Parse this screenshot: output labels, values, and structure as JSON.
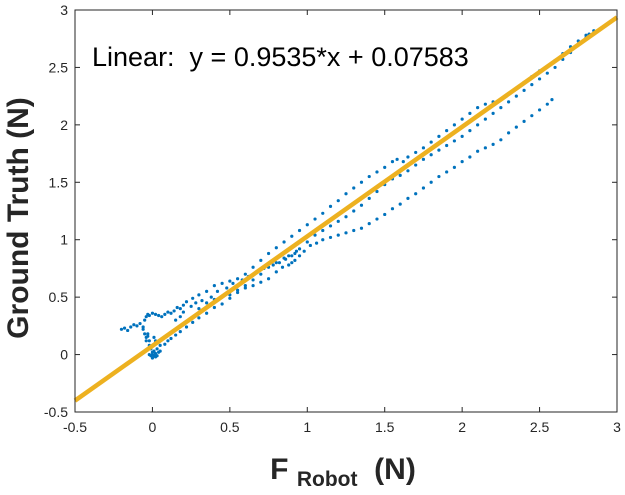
{
  "chart_data": {
    "type": "scatter",
    "title": "",
    "xlabel_main": "F",
    "xlabel_sub": "Robot",
    "xlabel_unit": " (N)",
    "ylabel": "Ground Truth (N)",
    "xlim": [
      -0.5,
      3
    ],
    "ylim": [
      -0.5,
      3
    ],
    "x_ticks": [
      -0.5,
      0,
      0.5,
      1,
      1.5,
      2,
      2.5,
      3
    ],
    "y_ticks": [
      -0.5,
      0,
      0.5,
      1,
      1.5,
      2,
      2.5,
      3
    ],
    "x_tick_labels": [
      "-0.5",
      "0",
      "0.5",
      "1",
      "1.5",
      "2",
      "2.5",
      "3"
    ],
    "y_tick_labels": [
      "-0.5",
      "0",
      "0.5",
      "1",
      "1.5",
      "2",
      "2.5",
      "3"
    ],
    "grid": false,
    "annotation": "Linear:  y = 0.9535*x + 0.07583",
    "fit": {
      "slope": 0.9535,
      "intercept": 0.07583,
      "x_range": [
        -0.5,
        3
      ]
    },
    "colors": {
      "points": "#0072BD",
      "fit_line": "#EDB120",
      "axes": "#262626"
    },
    "series": [
      {
        "points": [
          [
            -0.2,
            0.22
          ],
          [
            -0.18,
            0.23
          ],
          [
            -0.16,
            0.21
          ],
          [
            -0.14,
            0.24
          ],
          [
            -0.12,
            0.26
          ],
          [
            -0.1,
            0.25
          ],
          [
            -0.08,
            0.27
          ],
          [
            -0.06,
            0.24
          ],
          [
            -0.05,
            0.3
          ],
          [
            -0.04,
            0.33
          ],
          [
            -0.03,
            0.35
          ],
          [
            -0.02,
            0.34
          ],
          [
            0.0,
            0.36
          ],
          [
            0.02,
            0.35
          ],
          [
            0.04,
            0.34
          ],
          [
            0.06,
            0.33
          ],
          [
            0.08,
            0.35
          ],
          [
            0.1,
            0.37
          ],
          [
            0.12,
            0.36
          ],
          [
            0.14,
            0.38
          ],
          [
            0.16,
            0.41
          ],
          [
            0.18,
            0.4
          ],
          [
            0.2,
            0.43
          ],
          [
            -0.03,
            0.18
          ],
          [
            -0.02,
            0.12
          ],
          [
            -0.02,
            0.08
          ],
          [
            -0.01,
            0.05
          ],
          [
            0.0,
            0.02
          ],
          [
            0.0,
            0.0
          ],
          [
            0.01,
            -0.01
          ],
          [
            0.02,
            -0.02
          ],
          [
            0.03,
            -0.01
          ],
          [
            -0.01,
            -0.01
          ],
          [
            0.0,
            -0.03
          ],
          [
            0.02,
            0.01
          ],
          [
            0.04,
            0.02
          ],
          [
            0.05,
            0.03
          ],
          [
            0.03,
            0.05
          ],
          [
            0.01,
            0.03
          ],
          [
            -0.02,
            0.0
          ],
          [
            -0.06,
            0.22
          ],
          [
            -0.05,
            0.18
          ],
          [
            -0.04,
            0.15
          ],
          [
            -0.03,
            0.16
          ],
          [
            -0.04,
            0.12
          ],
          [
            0.01,
            0.15
          ],
          [
            0.02,
            0.12
          ],
          [
            0.05,
            0.08
          ],
          [
            0.08,
            0.09
          ],
          [
            0.1,
            0.12
          ],
          [
            0.12,
            0.14
          ],
          [
            0.15,
            0.17
          ],
          [
            0.18,
            0.2
          ],
          [
            0.22,
            0.24
          ],
          [
            0.26,
            0.28
          ],
          [
            0.3,
            0.32
          ],
          [
            0.35,
            0.36
          ],
          [
            0.4,
            0.41
          ],
          [
            0.45,
            0.44
          ],
          [
            0.5,
            0.49
          ],
          [
            0.55,
            0.54
          ],
          [
            0.6,
            0.58
          ],
          [
            0.65,
            0.6
          ],
          [
            0.7,
            0.63
          ],
          [
            0.75,
            0.66
          ],
          [
            0.8,
            0.72
          ],
          [
            0.84,
            0.76
          ],
          [
            0.88,
            0.78
          ],
          [
            0.9,
            0.8
          ],
          [
            0.92,
            0.82
          ],
          [
            0.95,
            0.86
          ],
          [
            0.98,
            0.9
          ],
          [
            1.02,
            0.95
          ],
          [
            1.06,
            0.97
          ],
          [
            1.1,
            1.0
          ],
          [
            1.15,
            1.02
          ],
          [
            1.2,
            1.04
          ],
          [
            1.25,
            1.06
          ],
          [
            1.3,
            1.08
          ],
          [
            1.35,
            1.1
          ],
          [
            1.4,
            1.14
          ],
          [
            1.45,
            1.18
          ],
          [
            1.5,
            1.22
          ],
          [
            1.55,
            1.27
          ],
          [
            1.6,
            1.31
          ],
          [
            1.65,
            1.36
          ],
          [
            1.7,
            1.4
          ],
          [
            1.75,
            1.45
          ],
          [
            1.8,
            1.5
          ],
          [
            1.85,
            1.55
          ],
          [
            1.9,
            1.59
          ],
          [
            1.95,
            1.63
          ],
          [
            2.0,
            1.68
          ],
          [
            2.05,
            1.72
          ],
          [
            2.1,
            1.77
          ],
          [
            2.15,
            1.8
          ],
          [
            2.2,
            1.83
          ],
          [
            2.25,
            1.87
          ],
          [
            2.3,
            1.93
          ],
          [
            2.35,
            1.98
          ],
          [
            2.4,
            2.03
          ],
          [
            2.45,
            2.08
          ],
          [
            2.5,
            2.13
          ],
          [
            2.55,
            2.18
          ],
          [
            2.58,
            2.22
          ],
          [
            0.22,
            0.46
          ],
          [
            0.26,
            0.49
          ],
          [
            0.3,
            0.52
          ],
          [
            0.35,
            0.55
          ],
          [
            0.4,
            0.6
          ],
          [
            0.45,
            0.62
          ],
          [
            0.5,
            0.64
          ],
          [
            0.55,
            0.66
          ],
          [
            0.6,
            0.7
          ],
          [
            0.65,
            0.76
          ],
          [
            0.7,
            0.82
          ],
          [
            0.75,
            0.88
          ],
          [
            0.8,
            0.93
          ],
          [
            0.85,
            0.98
          ],
          [
            0.9,
            1.03
          ],
          [
            0.95,
            1.08
          ],
          [
            1.0,
            1.13
          ],
          [
            1.05,
            1.18
          ],
          [
            1.1,
            1.23
          ],
          [
            1.15,
            1.29
          ],
          [
            1.2,
            1.34
          ],
          [
            1.25,
            1.4
          ],
          [
            1.3,
            1.45
          ],
          [
            1.35,
            1.5
          ],
          [
            1.4,
            1.55
          ],
          [
            1.45,
            1.59
          ],
          [
            1.5,
            1.63
          ],
          [
            1.55,
            1.68
          ],
          [
            1.58,
            1.7
          ],
          [
            1.62,
            1.68
          ],
          [
            1.65,
            1.72
          ],
          [
            1.7,
            1.76
          ],
          [
            1.75,
            1.8
          ],
          [
            1.8,
            1.85
          ],
          [
            1.85,
            1.9
          ],
          [
            1.9,
            1.95
          ],
          [
            1.95,
            2.0
          ],
          [
            2.0,
            2.05
          ],
          [
            2.05,
            2.1
          ],
          [
            2.1,
            2.15
          ],
          [
            2.15,
            2.18
          ],
          [
            2.2,
            2.2
          ],
          [
            2.25,
            2.22
          ],
          [
            2.3,
            2.27
          ],
          [
            2.35,
            2.32
          ],
          [
            2.4,
            2.37
          ],
          [
            2.45,
            2.42
          ],
          [
            2.5,
            2.47
          ],
          [
            2.55,
            2.51
          ],
          [
            2.6,
            2.56
          ],
          [
            2.65,
            2.62
          ],
          [
            2.7,
            2.68
          ],
          [
            2.75,
            2.73
          ],
          [
            2.8,
            2.78
          ],
          [
            2.85,
            2.82
          ],
          [
            0.3,
            0.4
          ],
          [
            0.35,
            0.45
          ],
          [
            0.4,
            0.48
          ],
          [
            0.45,
            0.5
          ],
          [
            0.5,
            0.52
          ],
          [
            0.55,
            0.56
          ],
          [
            0.6,
            0.6
          ],
          [
            0.65,
            0.65
          ],
          [
            0.7,
            0.7
          ],
          [
            0.75,
            0.76
          ],
          [
            0.8,
            0.8
          ],
          [
            0.85,
            0.84
          ],
          [
            0.88,
            0.86
          ],
          [
            0.92,
            0.88
          ],
          [
            0.95,
            0.92
          ],
          [
            1.0,
            0.98
          ],
          [
            1.05,
            1.04
          ],
          [
            1.1,
            1.08
          ],
          [
            1.15,
            1.12
          ],
          [
            1.2,
            1.16
          ],
          [
            1.25,
            1.2
          ],
          [
            1.3,
            1.25
          ],
          [
            1.35,
            1.3
          ],
          [
            1.4,
            1.36
          ],
          [
            1.45,
            1.42
          ],
          [
            1.5,
            1.48
          ],
          [
            1.55,
            1.53
          ],
          [
            1.6,
            1.56
          ],
          [
            1.65,
            1.6
          ],
          [
            1.7,
            1.65
          ],
          [
            1.75,
            1.7
          ],
          [
            1.8,
            1.74
          ],
          [
            1.85,
            1.78
          ],
          [
            1.9,
            1.82
          ],
          [
            1.95,
            1.86
          ],
          [
            2.0,
            1.9
          ],
          [
            2.05,
            1.95
          ],
          [
            2.1,
            2.0
          ],
          [
            2.15,
            2.05
          ],
          [
            2.2,
            2.1
          ],
          [
            2.25,
            2.15
          ],
          [
            2.3,
            2.2
          ],
          [
            2.35,
            2.25
          ],
          [
            2.4,
            2.3
          ],
          [
            2.45,
            2.35
          ],
          [
            2.5,
            2.4
          ],
          [
            2.55,
            2.45
          ],
          [
            2.6,
            2.5
          ],
          [
            2.65,
            2.57
          ],
          [
            2.7,
            2.63
          ],
          [
            2.75,
            2.7
          ],
          [
            2.8,
            2.76
          ],
          [
            2.82,
            2.79
          ],
          [
            0.15,
            0.3
          ],
          [
            0.18,
            0.33
          ],
          [
            0.2,
            0.37
          ],
          [
            0.25,
            0.42
          ],
          [
            0.28,
            0.45
          ],
          [
            0.32,
            0.47
          ],
          [
            0.38,
            0.5
          ],
          [
            0.42,
            0.55
          ],
          [
            0.48,
            0.58
          ],
          [
            0.52,
            0.62
          ],
          [
            0.58,
            0.65
          ],
          [
            0.62,
            0.68
          ],
          [
            0.68,
            0.72
          ],
          [
            0.72,
            0.75
          ],
          [
            0.78,
            0.78
          ],
          [
            0.82,
            0.8
          ],
          [
            0.86,
            0.83
          ],
          [
            0.9,
            0.86
          ],
          [
            0.93,
            0.9
          ]
        ]
      }
    ]
  }
}
